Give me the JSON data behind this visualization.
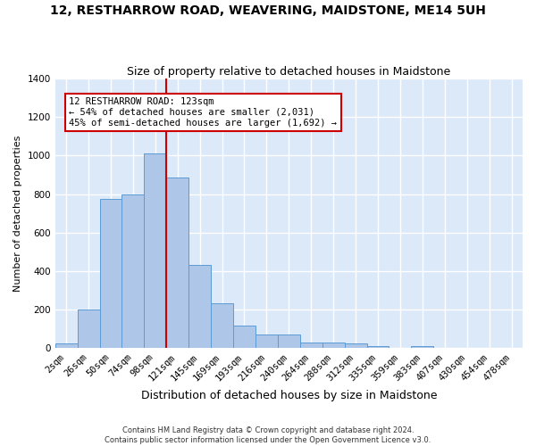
{
  "title": "12, RESTHARROW ROAD, WEAVERING, MAIDSTONE, ME14 5UH",
  "subtitle": "Size of property relative to detached houses in Maidstone",
  "xlabel": "Distribution of detached houses by size in Maidstone",
  "ylabel": "Number of detached properties",
  "categories": [
    "2sqm",
    "26sqm",
    "50sqm",
    "74sqm",
    "98sqm",
    "121sqm",
    "145sqm",
    "169sqm",
    "193sqm",
    "216sqm",
    "240sqm",
    "264sqm",
    "288sqm",
    "312sqm",
    "335sqm",
    "359sqm",
    "383sqm",
    "407sqm",
    "430sqm",
    "454sqm",
    "478sqm"
  ],
  "bar_heights": [
    22,
    200,
    775,
    800,
    1010,
    885,
    430,
    235,
    115,
    70,
    70,
    28,
    28,
    22,
    12,
    0,
    12,
    0,
    0,
    0,
    0
  ],
  "bar_color": "#aec6e8",
  "bar_edge_color": "#5b9bd5",
  "background_color": "#dce9f8",
  "grid_color": "#ffffff",
  "vline_x": 4.5,
  "vline_color": "#cc0000",
  "annotation_text": "12 RESTHARROW ROAD: 123sqm\n← 54% of detached houses are smaller (2,031)\n45% of semi-detached houses are larger (1,692) →",
  "annotation_box_color": "#cc0000",
  "ylim": [
    0,
    1400
  ],
  "yticks": [
    0,
    200,
    400,
    600,
    800,
    1000,
    1200,
    1400
  ],
  "footer": "Contains HM Land Registry data © Crown copyright and database right 2024.\nContains public sector information licensed under the Open Government Licence v3.0.",
  "title_fontsize": 10,
  "subtitle_fontsize": 9,
  "xlabel_fontsize": 9,
  "ylabel_fontsize": 8,
  "tick_fontsize": 7.5,
  "footer_fontsize": 6
}
